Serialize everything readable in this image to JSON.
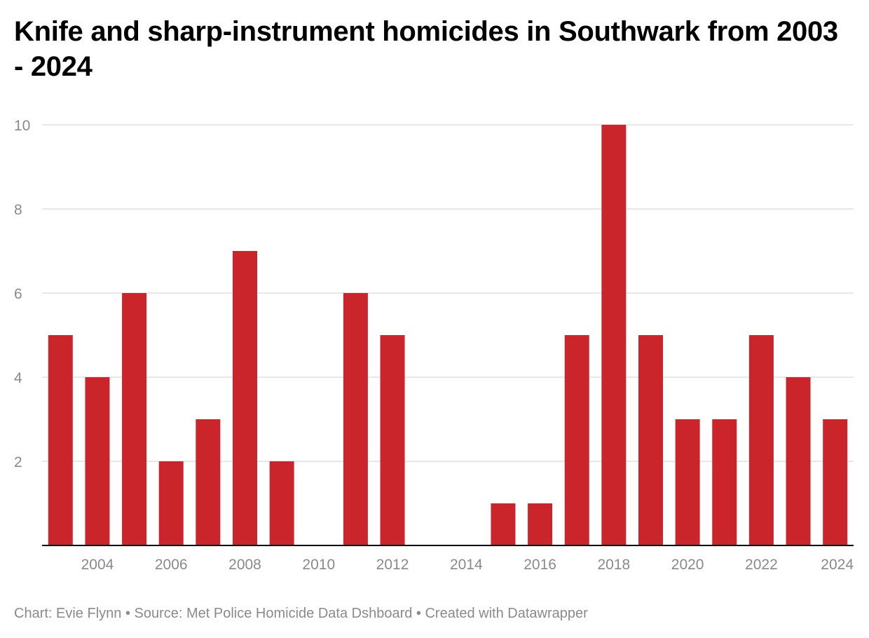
{
  "header": {
    "title": "Knife and sharp-instrument homicides in Southwark from 2003 - 2024"
  },
  "footer": {
    "text": "Chart: Evie Flynn • Source: Met Police Homicide Data Dshboard • Created with Datawrapper"
  },
  "colors": {
    "bar": "#c9252b",
    "grid": "#d9d9d9",
    "axis": "#000000",
    "tick_text": "#8a8a8a"
  },
  "chart_data": {
    "type": "bar",
    "categories": [
      "2003",
      "2004",
      "2005",
      "2006",
      "2007",
      "2008",
      "2009",
      "2010",
      "2011",
      "2012",
      "2013",
      "2014",
      "2015",
      "2016",
      "2017",
      "2018",
      "2019",
      "2020",
      "2021",
      "2022",
      "2023",
      "2024"
    ],
    "values": [
      5,
      4,
      6,
      2,
      3,
      7,
      2,
      0,
      6,
      5,
      0,
      0,
      1,
      1,
      5,
      10,
      5,
      3,
      3,
      5,
      4,
      3
    ],
    "x_tick_labels": [
      "2004",
      "2006",
      "2008",
      "2010",
      "2012",
      "2014",
      "2016",
      "2018",
      "2020",
      "2022",
      "2024"
    ],
    "y_ticks": [
      2,
      4,
      6,
      8,
      10
    ],
    "ylim": [
      0,
      10
    ],
    "grid": true,
    "legend": "none",
    "title": "Knife and sharp-instrument homicides in Southwark from 2003 - 2024",
    "xlabel": "",
    "ylabel": ""
  }
}
